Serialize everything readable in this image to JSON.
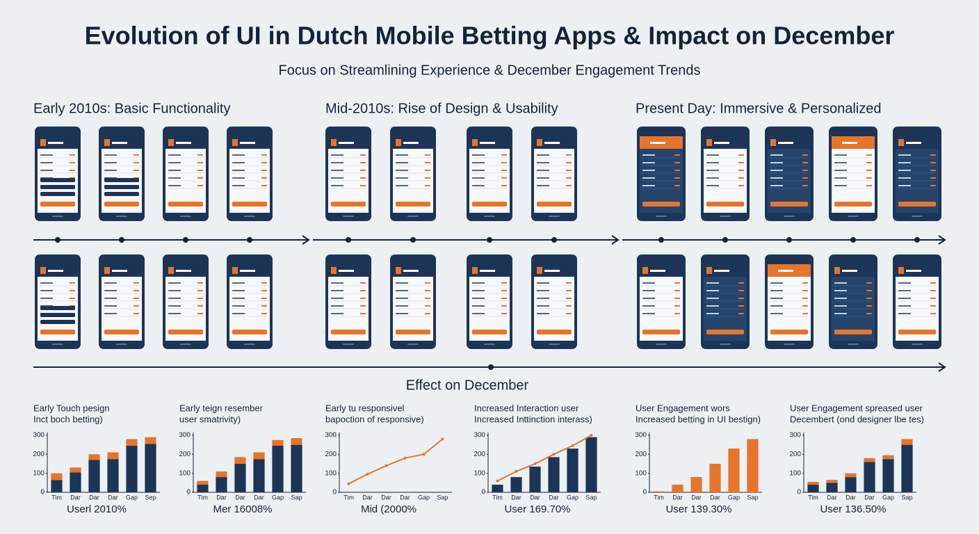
{
  "header": {
    "title": "Evolution of UI in Dutch Mobile Betting Apps & Impact on December",
    "subtitle": "Focus on Streamlining Experience & December Engagement Trends"
  },
  "eras": [
    "Early 2010s: Basic Functionality",
    "Mid-2010s: Rise of Design & Usability",
    "Present Day: Immersive & Personalized"
  ],
  "effect_title": "Effect on December",
  "chart_data": [
    {
      "type": "stacked_bar",
      "title": [
        "Early Touch pesign",
        "Inct boch betting)"
      ],
      "caption": "Userl 2010%",
      "categories": [
        "Tim",
        "Dar",
        "Dar",
        "Dar",
        "Gap",
        "Sep"
      ],
      "ylim": [
        0,
        300
      ],
      "yticks": [
        0,
        100,
        200,
        300
      ],
      "series": [
        {
          "color": "#1c3557",
          "values": [
            65,
            105,
            170,
            175,
            245,
            255
          ]
        },
        {
          "color": "#e8742a",
          "values": [
            35,
            25,
            30,
            35,
            35,
            35
          ]
        }
      ]
    },
    {
      "type": "stacked_bar",
      "title": [
        "Early teign resember",
        "user smatrivity)"
      ],
      "caption": "Mer 16008%",
      "categories": [
        "Tim",
        "Dar",
        "Dar",
        "Dar",
        "Gap",
        "Sap"
      ],
      "ylim": [
        0,
        300
      ],
      "yticks": [
        0,
        100,
        200,
        300
      ],
      "series": [
        {
          "color": "#1c3557",
          "values": [
            40,
            80,
            150,
            175,
            245,
            250
          ]
        },
        {
          "color": "#e8742a",
          "values": [
            20,
            30,
            35,
            35,
            30,
            35
          ]
        }
      ]
    },
    {
      "type": "line",
      "title": [
        "Early tu responsivel",
        "bapoction of responsive)"
      ],
      "caption": "Mid (2000%",
      "categories": [
        "Tim",
        "Dar",
        "Dar",
        "Dar",
        "Gap",
        "Sap"
      ],
      "ylim": [
        0,
        300
      ],
      "yticks": [
        0,
        100,
        200,
        300
      ],
      "series": [
        {
          "color": "#e8742a",
          "values": [
            45,
            95,
            140,
            180,
            200,
            280
          ]
        }
      ]
    },
    {
      "type": "bar_line",
      "title": [
        "Increased Interaction user",
        "Increased Inttinction interass)"
      ],
      "caption": "User 169.70%",
      "categories": [
        "Tim",
        "Dar",
        "Dar",
        "Dar",
        "Gap",
        "Sap"
      ],
      "ylim": [
        0,
        300
      ],
      "yticks": [
        0,
        100,
        200,
        300
      ],
      "series": [
        {
          "kind": "bar",
          "color": "#1c3557",
          "values": [
            40,
            80,
            135,
            185,
            230,
            290
          ]
        },
        {
          "kind": "line",
          "color": "#e8742a",
          "values": [
            60,
            110,
            150,
            200,
            245,
            300
          ]
        }
      ]
    },
    {
      "type": "stacked_bar",
      "title": [
        "User Engagement wors",
        "Increased betting in UI bestign)"
      ],
      "caption": "User 139.30%",
      "categories": [
        "Tim",
        "Dar",
        "Dar",
        "Dar",
        "Gap",
        "Sap"
      ],
      "ylim": [
        0,
        300
      ],
      "yticks": [
        0,
        100,
        200,
        300
      ],
      "series": [
        {
          "color": "#e8742a",
          "values": [
            5,
            40,
            80,
            150,
            230,
            280
          ]
        }
      ]
    },
    {
      "type": "stacked_bar",
      "title": [
        "User Engagement spreased user",
        "Decembert (ond designer lbe tes)"
      ],
      "caption": "User 136.50%",
      "categories": [
        "Tim",
        "Dar",
        "Dar",
        "Dar",
        "Gap",
        "Sap"
      ],
      "ylim": [
        0,
        300
      ],
      "yticks": [
        0,
        100,
        200,
        300
      ],
      "series": [
        {
          "color": "#1c3557",
          "values": [
            40,
            50,
            80,
            160,
            175,
            250
          ]
        },
        {
          "color": "#e8742a",
          "values": [
            15,
            15,
            20,
            20,
            20,
            30
          ]
        }
      ]
    }
  ]
}
